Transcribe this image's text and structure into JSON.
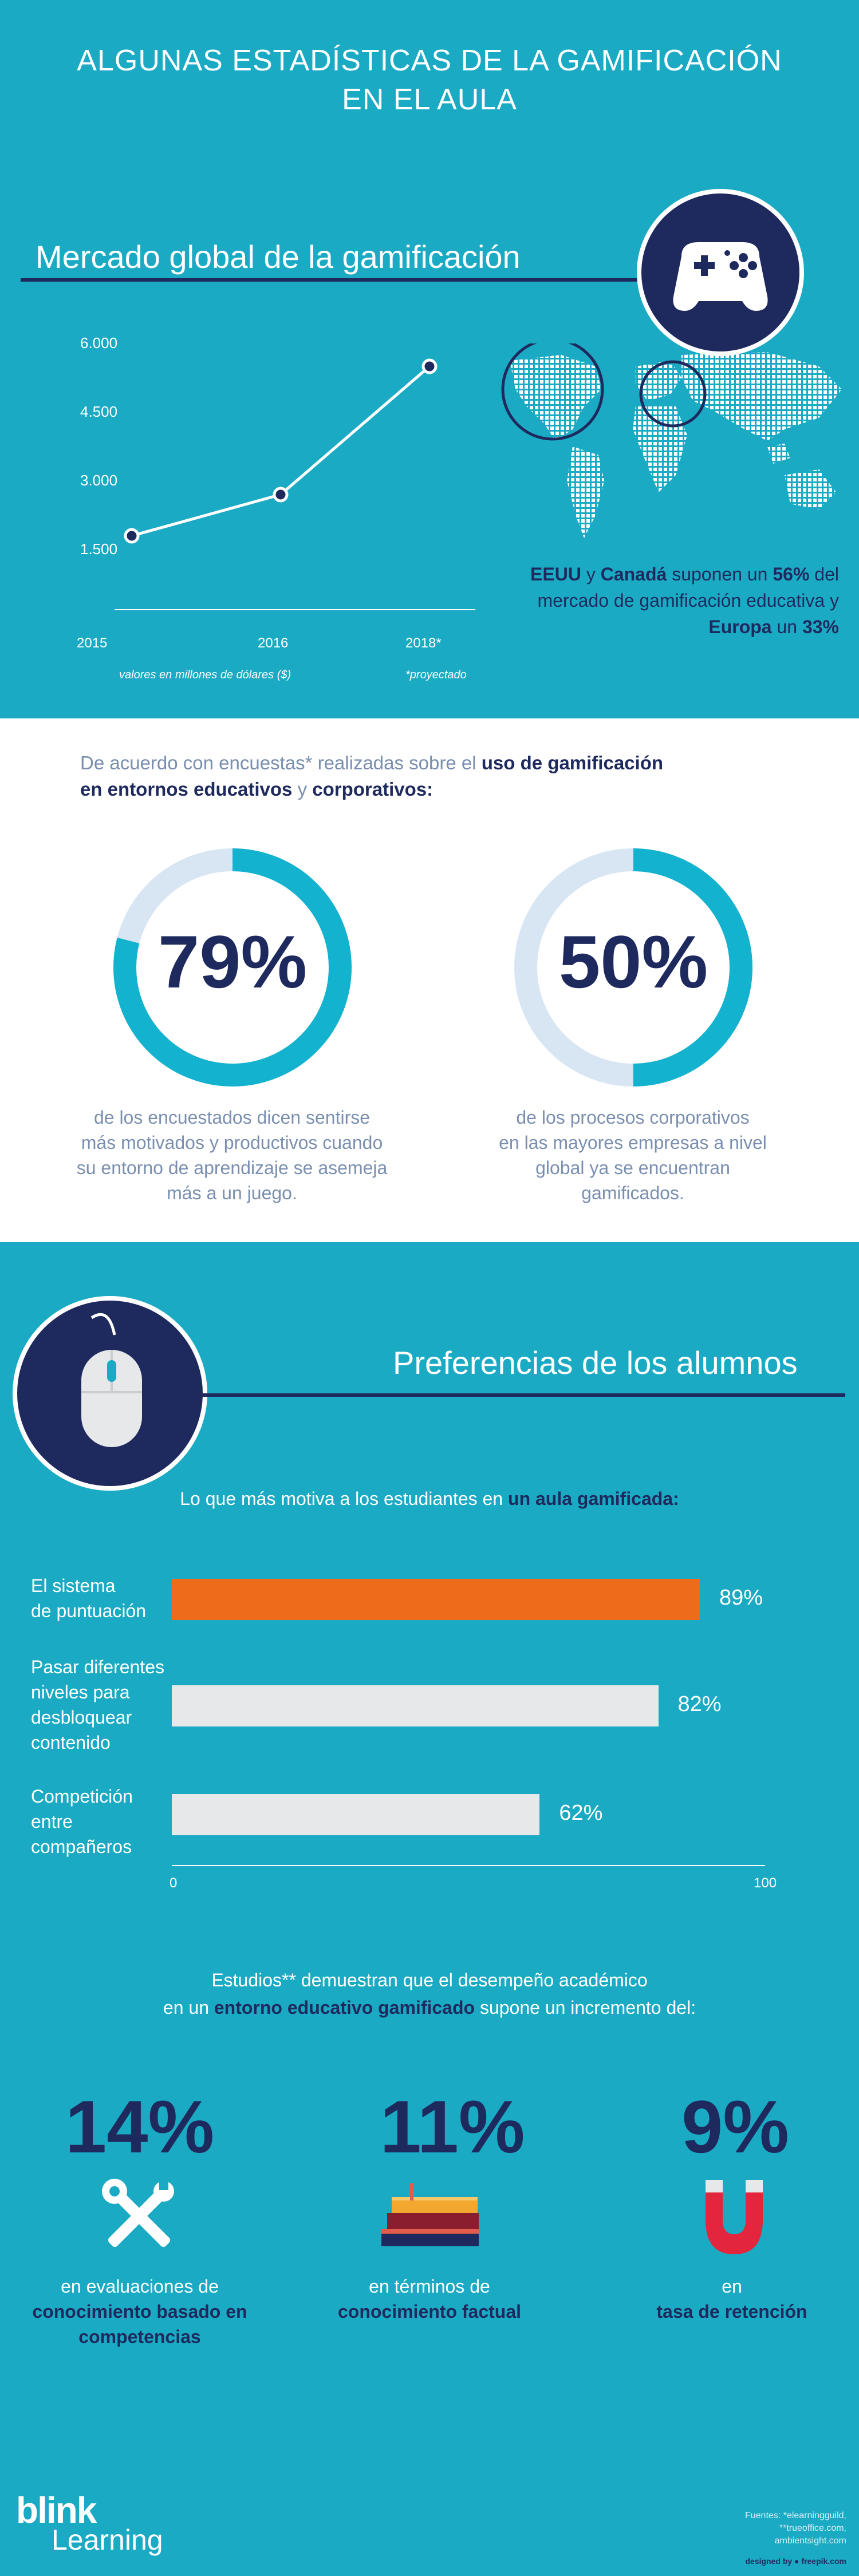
{
  "header": {
    "title_line1": "ALGUNAS ESTADÍSTICAS DE LA GAMIFICACIÓN",
    "title_line2": "EN EL AULA"
  },
  "market": {
    "heading": "Mercado global de la gamificación",
    "controller_icon": "gamepad-icon",
    "y_ticks": [
      "6.000",
      "4.500",
      "3.000",
      "1.500"
    ],
    "x_ticks": [
      "2015",
      "2016",
      "2018*"
    ],
    "units_note": "valores en millones de dólares ($)",
    "projection_note": "*proyectado",
    "caption_part1": "EEUU",
    "caption_part2": " y ",
    "caption_part3": "Canadá",
    "caption_part4": " suponen un ",
    "caption_part5": "56%",
    "caption_part6": " del mercado de gamificación educativa y ",
    "caption_part7": "Europa",
    "caption_part8": " un ",
    "caption_part9": "33%"
  },
  "chart_data": [
    {
      "type": "line",
      "x": [
        "2015",
        "2016",
        "2018*"
      ],
      "series": [
        {
          "values": [
            1800,
            2700,
            5500
          ]
        }
      ],
      "ylim": [
        0,
        6500
      ],
      "xlabel": "",
      "ylabel": "",
      "grid": false
    },
    {
      "type": "bar",
      "categories": [
        "El sistema de puntuación",
        "Pasar diferentes niveles para desbloquear contenido",
        "Competición entre compañeros"
      ],
      "values": [
        89,
        82,
        62
      ],
      "xlim": [
        0,
        100
      ]
    }
  ],
  "surveys": {
    "intro_part1": "De acuerdo con encuestas* realizadas sobre el ",
    "intro_part2": "uso de gamificación",
    "intro_part3": "en entornos educativos",
    "intro_part4": " y ",
    "intro_part5": "corporativos:",
    "left": {
      "value_text": "79%",
      "value": 79,
      "desc_line1": "de los encuestados dicen sentirse",
      "desc_line2": "más motivados y productivos cuando",
      "desc_line3": "su entorno de aprendizaje se asemeja",
      "desc_line4": "más a un juego."
    },
    "right": {
      "value_text": "50%",
      "value": 50,
      "desc_line1": "de los procesos corporativos",
      "desc_line2": "en las mayores empresas a nivel",
      "desc_line3": "global ya se encuentran",
      "desc_line4": "gamificados."
    }
  },
  "preferences": {
    "heading": "Preferencias de los alumnos",
    "intro_part1": "Lo que más motiva a los estudiantes en ",
    "intro_part2": "un aula gamificada:",
    "bars": [
      {
        "label_line1": "El sistema",
        "label_line2": "de puntuación",
        "label_line3": "",
        "label_line4": "",
        "value_text": "89%"
      },
      {
        "label_line1": "Pasar diferentes",
        "label_line2": "niveles para",
        "label_line3": "desbloquear",
        "label_line4": "contenido",
        "value_text": "82%"
      },
      {
        "label_line1": "Competición",
        "label_line2": "entre",
        "label_line3": "compañeros",
        "label_line4": "",
        "value_text": "62%"
      }
    ],
    "axis_min": "0",
    "axis_max": "100",
    "colors": {
      "highlight": "#ee6b1c",
      "bar": "#e6e8ea"
    }
  },
  "performance": {
    "intro_line1": "Estudios** demuestran que el desempeño académico",
    "intro_line2_part1": "en un ",
    "intro_line2_part2": "entorno educativo gamificado",
    "intro_line2_part3": " supone un incremento del:",
    "stats": [
      {
        "value": "14%",
        "icon": "tools-icon",
        "line1": "en evaluaciones de",
        "line2": "conocimiento basado en",
        "line3": "competencias"
      },
      {
        "value": "11%",
        "icon": "books-icon",
        "line1": "en términos de",
        "line2": "conocimiento factual",
        "line3": ""
      },
      {
        "value": "9%",
        "icon": "magnet-icon",
        "line1": "en",
        "line2": "tasa de retención",
        "line3": ""
      }
    ]
  },
  "footer": {
    "logo_word1": "blink",
    "logo_word2": "Learning",
    "sources_line1": "Fuentes: *elearningguild,",
    "sources_line2": "**trueoffice.com,",
    "sources_line3": "ambientsight.com",
    "designed_by": "designed by ● freepik.com"
  },
  "colors": {
    "teal": "#1baac4",
    "navy": "#1e2a5e",
    "donut_light": "#d8e6f4",
    "donut_dark": "#13b2cf"
  }
}
